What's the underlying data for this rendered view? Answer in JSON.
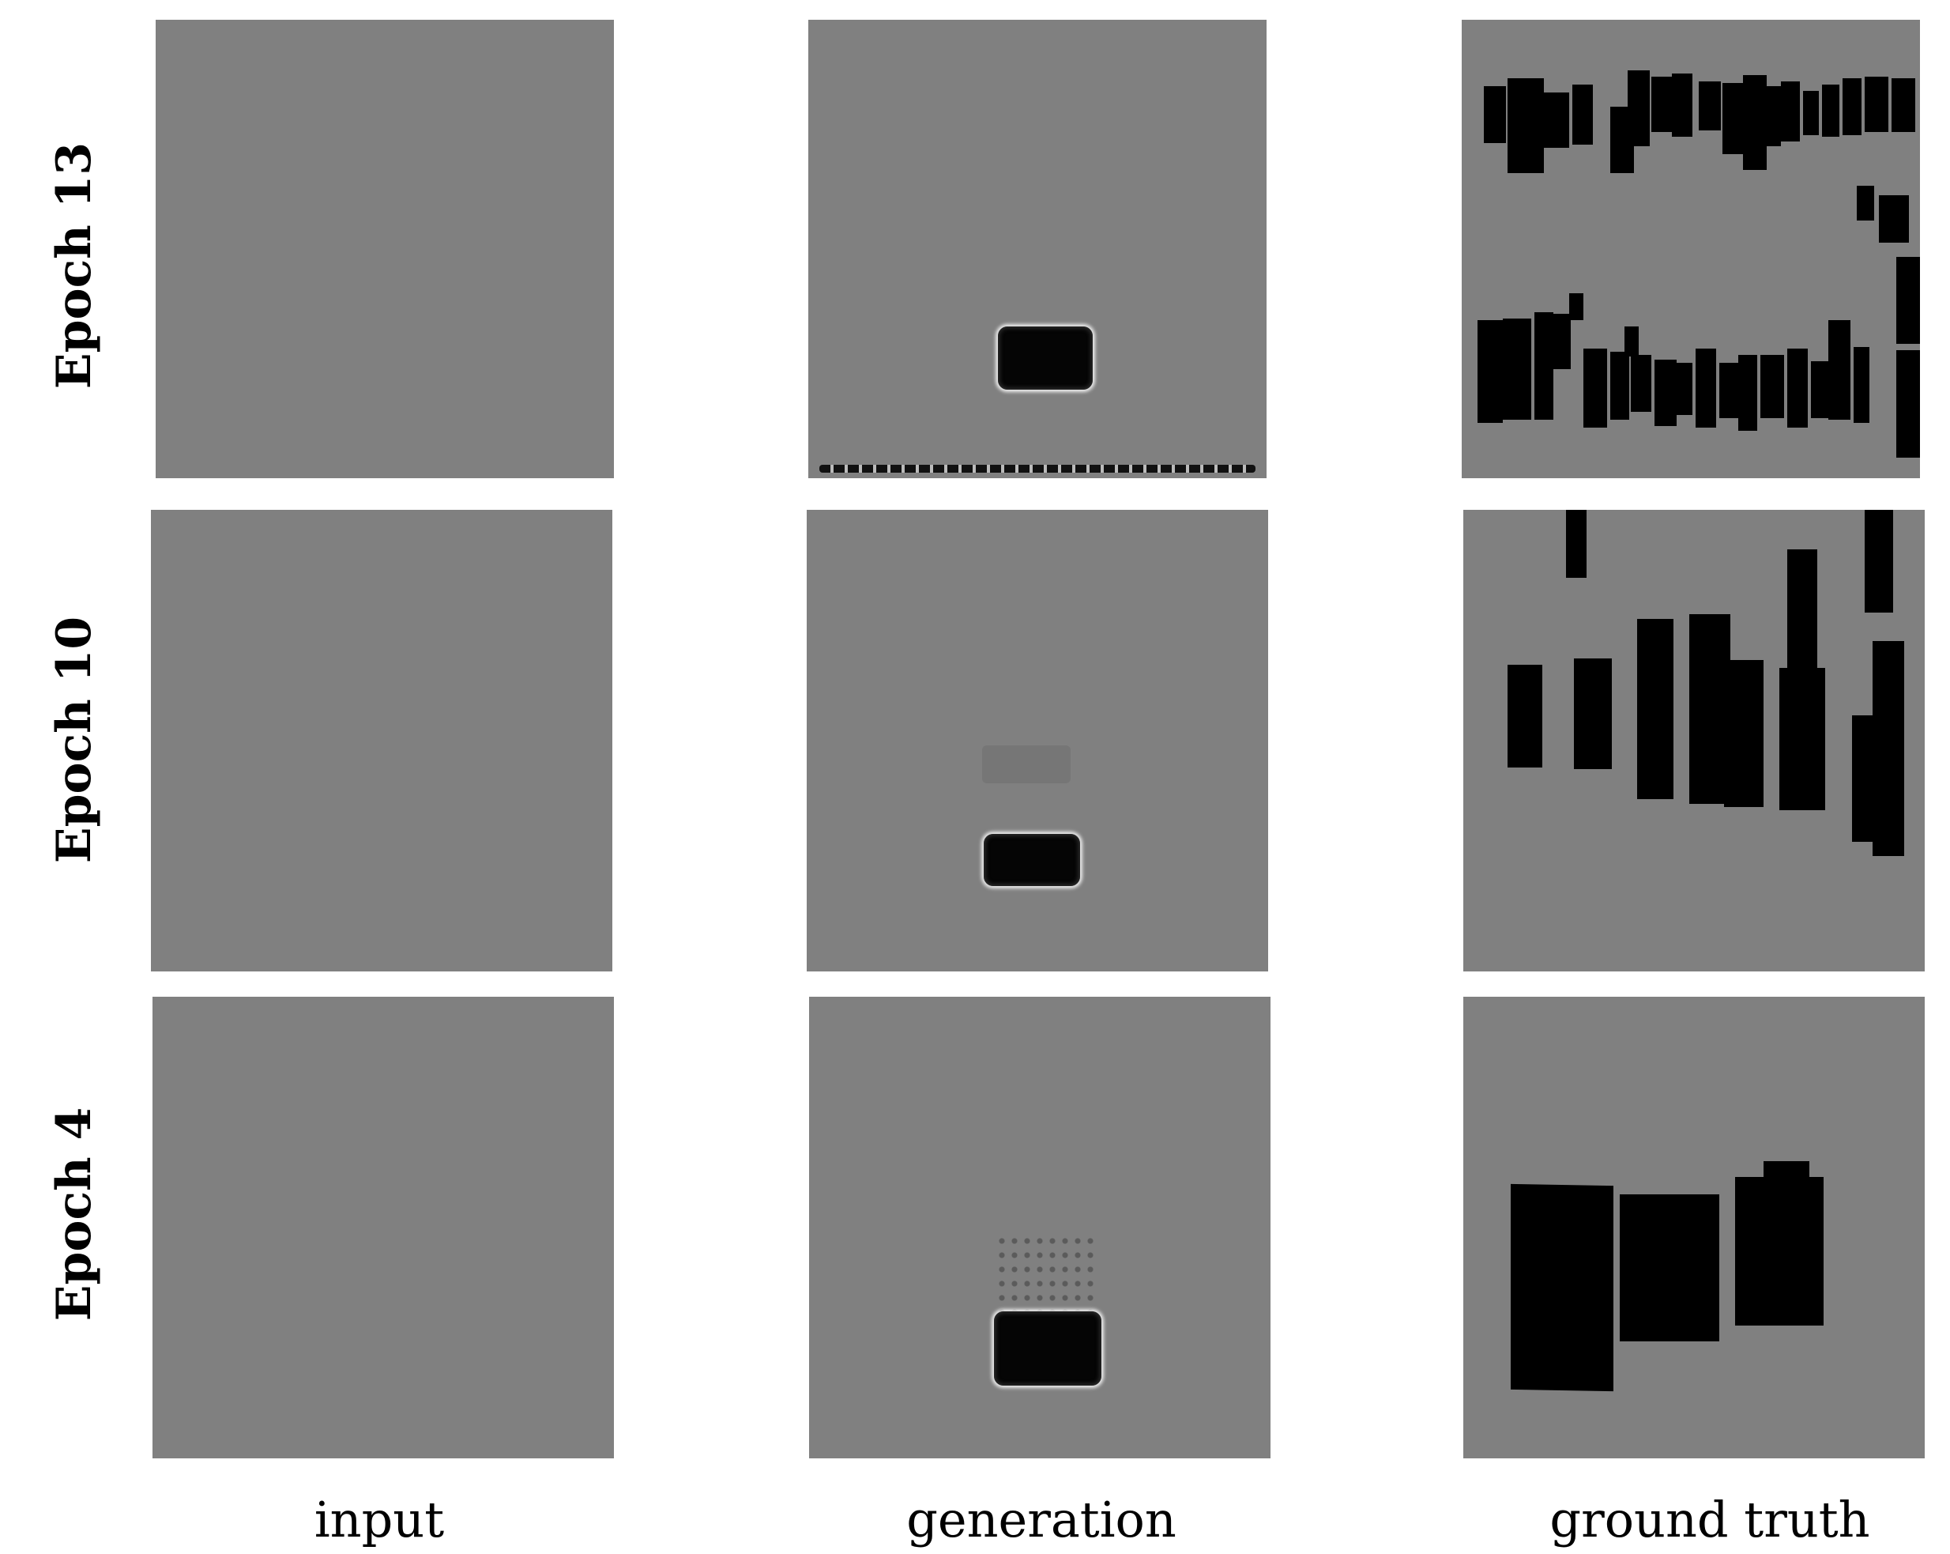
{
  "rows": [
    {
      "label": "Epoch 13"
    },
    {
      "label": "Epoch 10"
    },
    {
      "label": "Epoch 4"
    }
  ],
  "columns": [
    {
      "label": "input"
    },
    {
      "label": "generation"
    },
    {
      "label": "ground truth"
    }
  ],
  "colors": {
    "panel_gray": "#808080",
    "block": "#000000",
    "background": "#ffffff"
  }
}
